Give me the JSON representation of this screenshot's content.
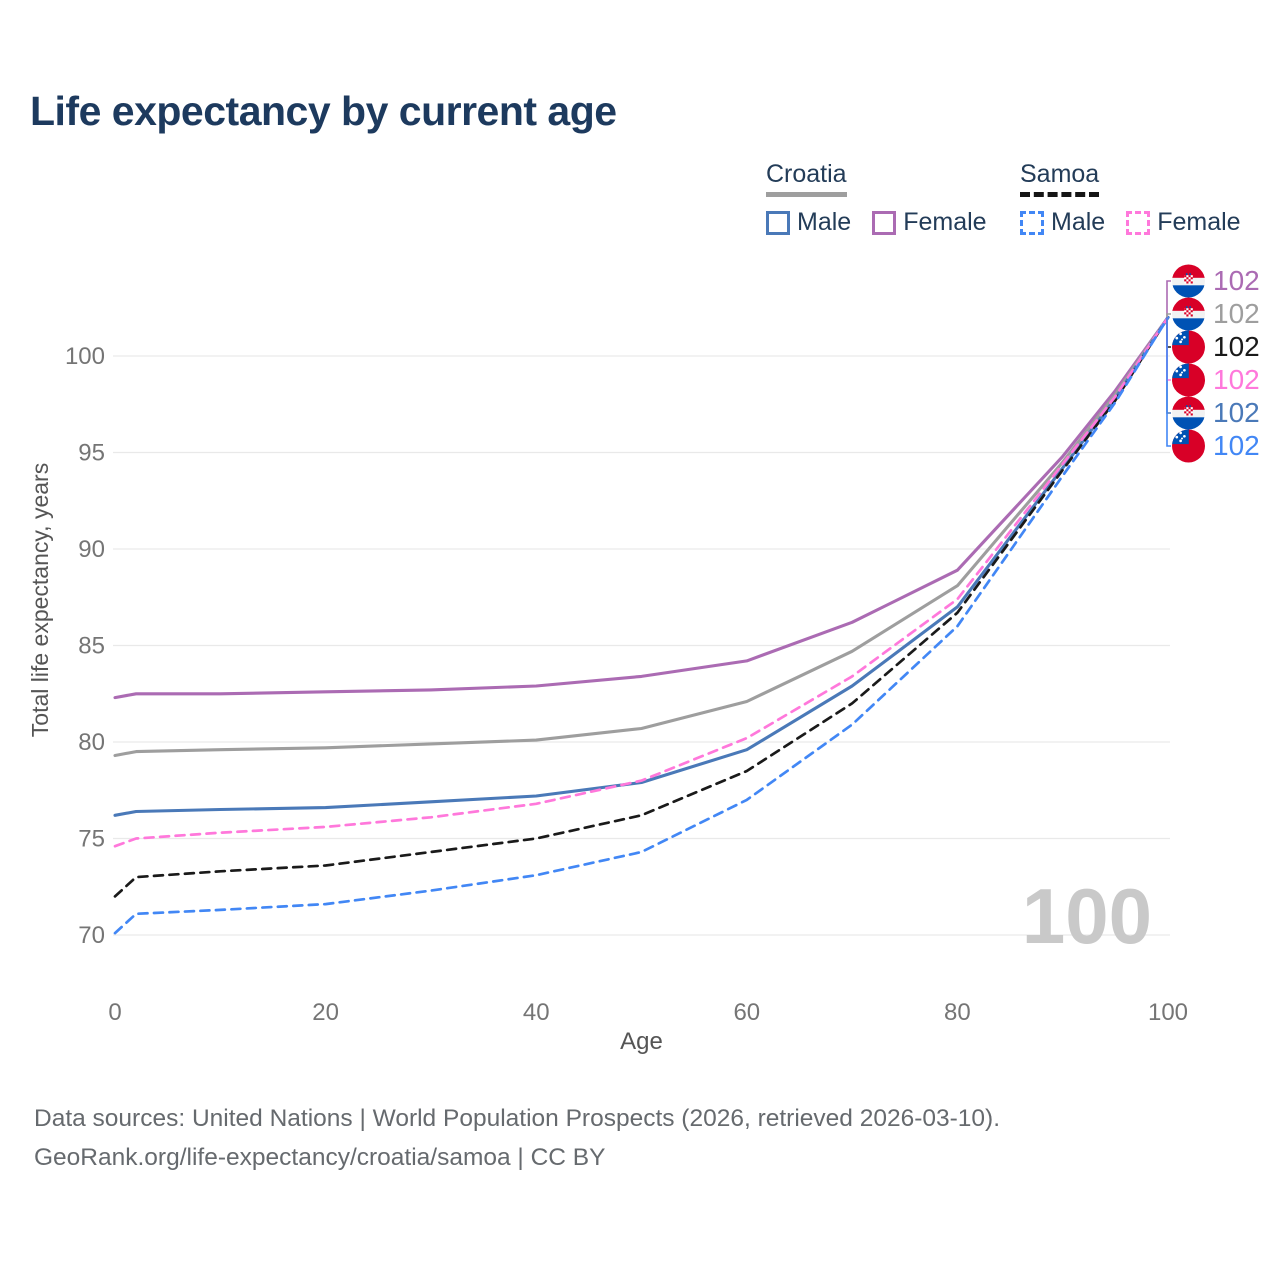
{
  "title": "Life expectancy by current age",
  "legend": {
    "groups": [
      {
        "label": "Croatia",
        "underline_color": "#9e9e9e",
        "underline_style": "solid",
        "items": [
          {
            "label": "Male",
            "color": "#4a79b8",
            "style": "solid"
          },
          {
            "label": "Female",
            "color": "#ab6bb3",
            "style": "solid"
          }
        ]
      },
      {
        "label": "Samoa",
        "underline_color": "#151515",
        "underline_style": "dashed",
        "items": [
          {
            "label": "Male",
            "color": "#4287f5",
            "style": "dashed"
          },
          {
            "label": "Female",
            "color": "#ff78db",
            "style": "dashed"
          }
        ]
      }
    ]
  },
  "footer": {
    "line1": "Data sources: United Nations | World Population Prospects (2026, retrieved 2026-03-10).",
    "line2": "GeoRank.org/life-expectancy/croatia/samoa | CC BY"
  },
  "chart_data": {
    "type": "line",
    "title": "Life expectancy by current age",
    "xlabel": "Age",
    "ylabel": "Total life expectancy, years",
    "x_ticks": [
      0,
      20,
      40,
      60,
      80,
      100
    ],
    "y_ticks": [
      70,
      75,
      80,
      85,
      90,
      95,
      100
    ],
    "xlim": [
      0,
      100
    ],
    "ylim": [
      68.5,
      103
    ],
    "grid": "horizontal-only",
    "legend_position": "top-right",
    "watermark": "100",
    "ages": [
      0,
      2,
      10,
      20,
      30,
      40,
      50,
      60,
      70,
      80,
      90,
      95,
      100
    ],
    "series": [
      {
        "name": "Croatia Female",
        "country": "Croatia",
        "sex": "Female",
        "color": "#ab6bb3",
        "dash": false,
        "values": [
          82.3,
          82.5,
          82.5,
          82.6,
          82.7,
          82.9,
          83.4,
          84.2,
          86.2,
          88.9,
          94.8,
          98.2,
          102
        ],
        "end_label": "102",
        "end_row": 0,
        "flag": "croatia"
      },
      {
        "name": "Croatia",
        "country": "Croatia",
        "sex": "Both",
        "color": "#9e9e9e",
        "dash": false,
        "values": [
          79.3,
          79.5,
          79.6,
          79.7,
          79.9,
          80.1,
          80.7,
          82.1,
          84.7,
          88.1,
          94.5,
          98.0,
          102
        ],
        "end_label": "102",
        "end_row": 1,
        "flag": "croatia"
      },
      {
        "name": "Croatia Male",
        "country": "Croatia",
        "sex": "Male",
        "color": "#4a79b8",
        "dash": false,
        "values": [
          76.2,
          76.4,
          76.5,
          76.6,
          76.9,
          77.2,
          77.9,
          79.6,
          82.9,
          87.0,
          94.2,
          97.8,
          102
        ],
        "end_label": "102",
        "end_row": 4,
        "flag": "croatia"
      },
      {
        "name": "Samoa",
        "country": "Samoa",
        "sex": "Both",
        "color": "#1a1a1a",
        "dash": true,
        "values": [
          72.0,
          73.0,
          73.3,
          73.6,
          74.3,
          75.0,
          76.2,
          78.5,
          82.0,
          86.7,
          94.1,
          97.7,
          102
        ],
        "end_label": "102",
        "end_row": 2,
        "flag": "samoa"
      },
      {
        "name": "Samoa Female",
        "country": "Samoa",
        "sex": "Female",
        "color": "#ff78db",
        "dash": true,
        "values": [
          74.6,
          75.0,
          75.3,
          75.6,
          76.1,
          76.8,
          78.0,
          80.2,
          83.4,
          87.4,
          94.4,
          97.9,
          102
        ],
        "end_label": "102",
        "end_row": 3,
        "flag": "samoa"
      },
      {
        "name": "Samoa Male",
        "country": "Samoa",
        "sex": "Male",
        "color": "#4287f5",
        "dash": true,
        "values": [
          70.1,
          71.1,
          71.3,
          71.6,
          72.3,
          73.1,
          74.3,
          77.0,
          80.9,
          86.0,
          93.8,
          97.6,
          102
        ],
        "end_label": "102",
        "end_row": 5,
        "flag": "samoa"
      }
    ],
    "style": {
      "grid_color": "#e9e9e9",
      "tick_color": "#757575",
      "axis_label_color": "#555555",
      "watermark_color": "#c9c9c9"
    }
  }
}
